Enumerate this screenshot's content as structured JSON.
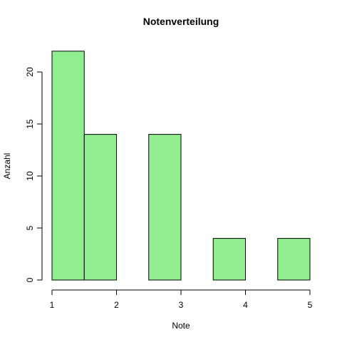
{
  "chart_data": {
    "type": "bar",
    "title": "Notenverteilung",
    "xlabel": "Note",
    "ylabel": "Anzahl",
    "bins": [
      {
        "from": 1.0,
        "to": 1.5,
        "value": 22
      },
      {
        "from": 1.5,
        "to": 2.0,
        "value": 14
      },
      {
        "from": 2.0,
        "to": 2.5,
        "value": 0
      },
      {
        "from": 2.5,
        "to": 3.0,
        "value": 14
      },
      {
        "from": 3.0,
        "to": 3.5,
        "value": 0
      },
      {
        "from": 3.5,
        "to": 4.0,
        "value": 4
      },
      {
        "from": 4.0,
        "to": 4.5,
        "value": 0
      },
      {
        "from": 4.5,
        "to": 5.0,
        "value": 4
      }
    ],
    "xlim": [
      1,
      5
    ],
    "ylim": [
      0,
      22
    ],
    "x_ticks": [
      "1",
      "2",
      "3",
      "4",
      "5"
    ],
    "y_ticks": [
      "0",
      "5",
      "10",
      "15",
      "20"
    ],
    "bar_color": "#90ee90",
    "grid": false
  }
}
